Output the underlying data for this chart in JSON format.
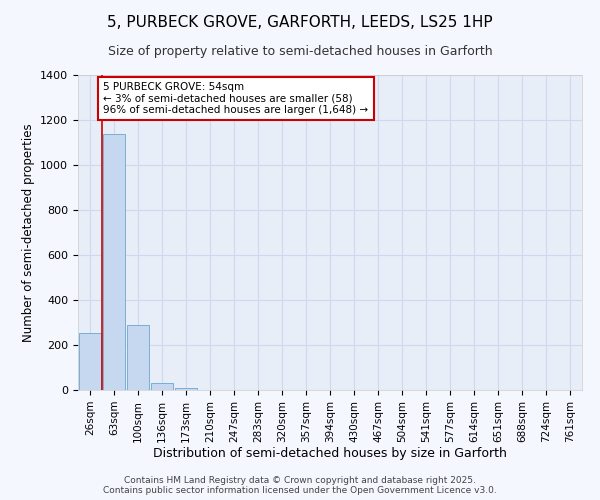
{
  "title_line1": "5, PURBECK GROVE, GARFORTH, LEEDS, LS25 1HP",
  "title_line2": "Size of property relative to semi-detached houses in Garforth",
  "xlabel": "Distribution of semi-detached houses by size in Garforth",
  "ylabel": "Number of semi-detached properties",
  "categories": [
    "26sqm",
    "63sqm",
    "100sqm",
    "136sqm",
    "173sqm",
    "210sqm",
    "247sqm",
    "283sqm",
    "320sqm",
    "357sqm",
    "394sqm",
    "430sqm",
    "467sqm",
    "504sqm",
    "541sqm",
    "577sqm",
    "614sqm",
    "651sqm",
    "688sqm",
    "724sqm",
    "761sqm"
  ],
  "values": [
    253,
    1140,
    290,
    30,
    10,
    0,
    0,
    0,
    0,
    0,
    0,
    0,
    0,
    0,
    0,
    0,
    0,
    0,
    0,
    0,
    0
  ],
  "bar_color": "#c5d8f0",
  "bar_edge_color": "#7aaed6",
  "annotation_text": "5 PURBECK GROVE: 54sqm\n← 3% of semi-detached houses are smaller (58)\n96% of semi-detached houses are larger (1,648) →",
  "annotation_box_color": "#ffffff",
  "annotation_box_edge": "#cc0000",
  "annotation_text_color": "#000000",
  "red_line_color": "#cc0000",
  "ylim": [
    0,
    1400
  ],
  "yticks": [
    0,
    200,
    400,
    600,
    800,
    1000,
    1200,
    1400
  ],
  "footer_line1": "Contains HM Land Registry data © Crown copyright and database right 2025.",
  "footer_line2": "Contains public sector information licensed under the Open Government Licence v3.0.",
  "background_color": "#f5f7ff",
  "plot_background_color": "#e8eef8",
  "grid_color": "#d0d8f0"
}
